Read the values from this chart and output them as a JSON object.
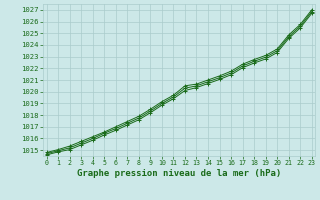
{
  "title": "Graphe pression niveau de la mer (hPa)",
  "bg_color": "#cce8e8",
  "grid_color": "#aacccc",
  "line_color": "#1a6b1a",
  "x_values": [
    0,
    1,
    2,
    3,
    4,
    5,
    6,
    7,
    8,
    9,
    10,
    11,
    12,
    13,
    14,
    15,
    16,
    17,
    18,
    19,
    20,
    21,
    22,
    23
  ],
  "line1": [
    1014.8,
    1015.05,
    1015.35,
    1015.75,
    1016.15,
    1016.55,
    1017.0,
    1017.45,
    1017.9,
    1018.5,
    1019.15,
    1019.7,
    1020.5,
    1020.65,
    1021.0,
    1021.35,
    1021.75,
    1022.35,
    1022.75,
    1023.1,
    1023.65,
    1024.85,
    1025.75,
    1027.0
  ],
  "line2": [
    1014.7,
    1014.95,
    1015.2,
    1015.6,
    1016.0,
    1016.45,
    1016.85,
    1017.3,
    1017.75,
    1018.35,
    1019.0,
    1019.55,
    1020.3,
    1020.5,
    1020.85,
    1021.2,
    1021.6,
    1022.2,
    1022.6,
    1022.95,
    1023.5,
    1024.7,
    1025.6,
    1026.85
  ],
  "line3": [
    1014.6,
    1014.85,
    1015.05,
    1015.45,
    1015.85,
    1016.3,
    1016.7,
    1017.15,
    1017.6,
    1018.2,
    1018.85,
    1019.4,
    1020.1,
    1020.35,
    1020.7,
    1021.05,
    1021.45,
    1022.05,
    1022.45,
    1022.8,
    1023.35,
    1024.55,
    1025.45,
    1026.7
  ],
  "ylim": [
    1014.5,
    1027.5
  ],
  "yticks": [
    1015,
    1016,
    1017,
    1018,
    1019,
    1020,
    1021,
    1022,
    1023,
    1024,
    1025,
    1026,
    1027
  ],
  "xlim": [
    -0.3,
    23.3
  ],
  "figsize": [
    3.2,
    2.0
  ],
  "dpi": 100
}
